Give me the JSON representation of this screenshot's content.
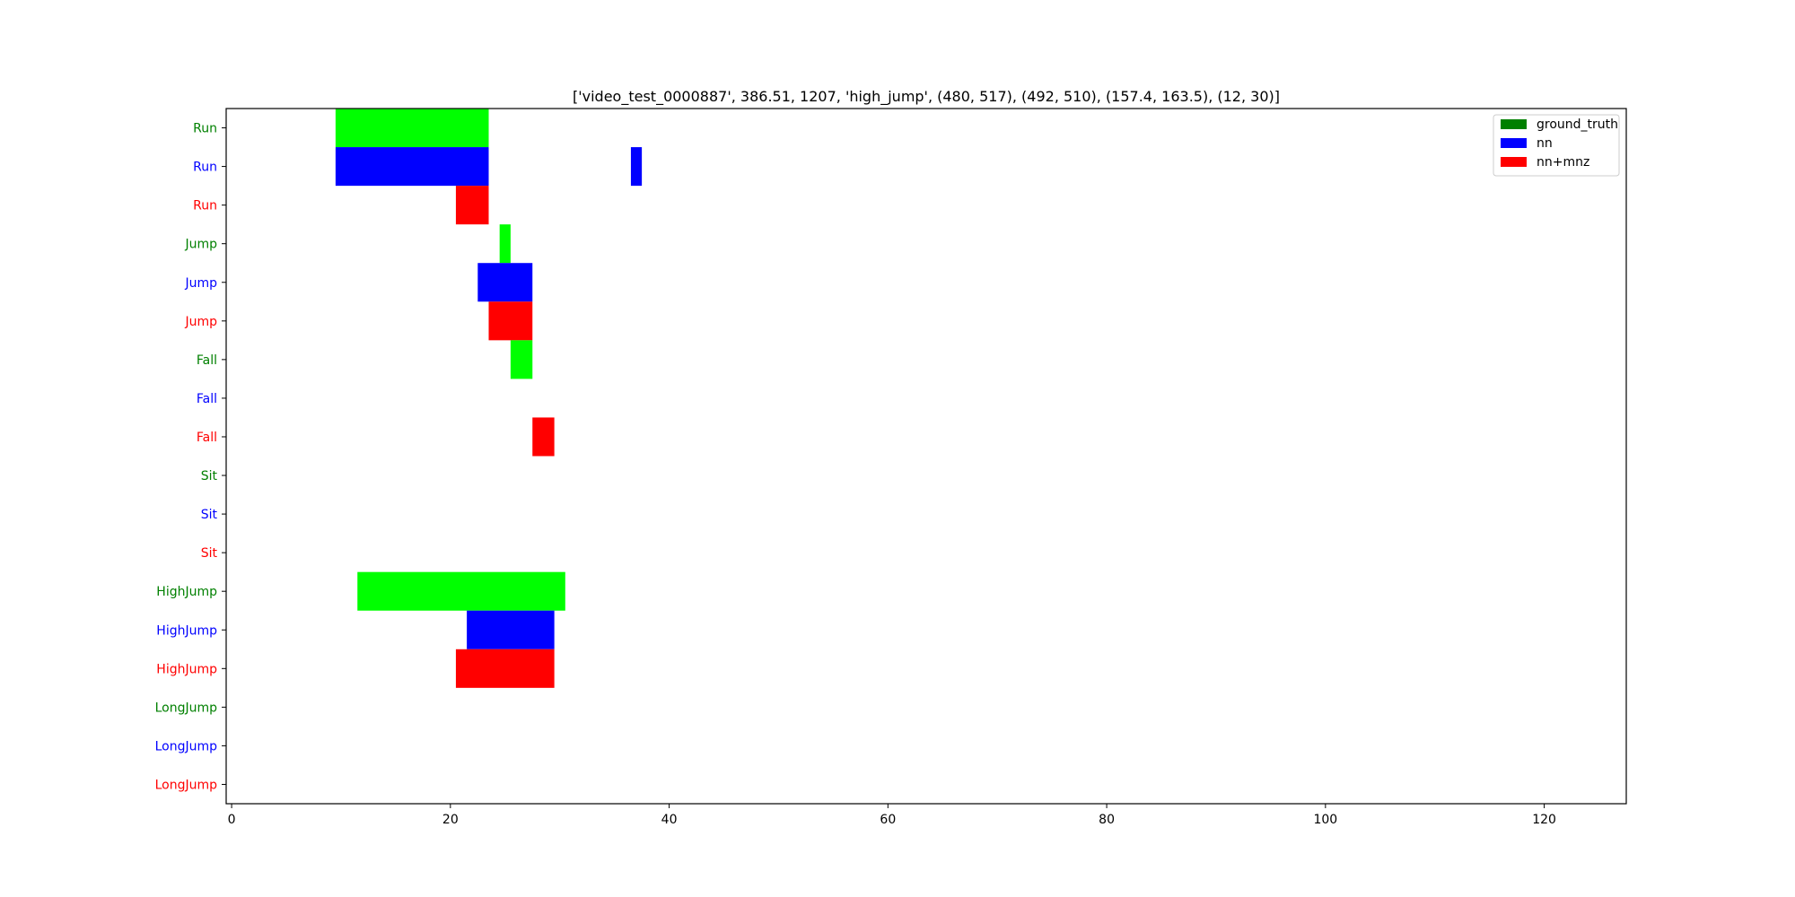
{
  "chart_data": {
    "type": "bar",
    "orientation": "horizontal",
    "title": "['video_test_0000887', 386.51, 1207, 'high_jump', (480, 517), (492, 510), (157.4, 163.5), (12, 30)]",
    "xlabel": "",
    "ylabel": "",
    "xlim": [
      -0.5,
      127.5
    ],
    "x_ticks": [
      0,
      20,
      40,
      60,
      80,
      100,
      120
    ],
    "grid": false,
    "legend_position": "top-right",
    "legend": [
      {
        "name": "ground_truth",
        "color": "#008000"
      },
      {
        "name": "nn",
        "color": "#0000ff"
      },
      {
        "name": "nn+mnz",
        "color": "#ff0000"
      }
    ],
    "rows": [
      {
        "label": "Run",
        "label_color": "#008000",
        "bar_color": "#00ff00",
        "segments": [
          [
            9.5,
            23.5
          ]
        ]
      },
      {
        "label": "Run",
        "label_color": "#0000ff",
        "bar_color": "#0000ff",
        "segments": [
          [
            9.5,
            23.5
          ],
          [
            36.5,
            37.5
          ]
        ]
      },
      {
        "label": "Run",
        "label_color": "#ff0000",
        "bar_color": "#ff0000",
        "segments": [
          [
            20.5,
            23.5
          ]
        ]
      },
      {
        "label": "Jump",
        "label_color": "#008000",
        "bar_color": "#00ff00",
        "segments": [
          [
            24.5,
            25.5
          ]
        ]
      },
      {
        "label": "Jump",
        "label_color": "#0000ff",
        "bar_color": "#0000ff",
        "segments": [
          [
            22.5,
            27.5
          ]
        ]
      },
      {
        "label": "Jump",
        "label_color": "#ff0000",
        "bar_color": "#ff0000",
        "segments": [
          [
            23.5,
            27.5
          ]
        ]
      },
      {
        "label": "Fall",
        "label_color": "#008000",
        "bar_color": "#00ff00",
        "segments": [
          [
            25.5,
            27.5
          ]
        ]
      },
      {
        "label": "Fall",
        "label_color": "#0000ff",
        "bar_color": "#0000ff",
        "segments": []
      },
      {
        "label": "Fall",
        "label_color": "#ff0000",
        "bar_color": "#ff0000",
        "segments": [
          [
            27.5,
            29.5
          ]
        ]
      },
      {
        "label": "Sit",
        "label_color": "#008000",
        "bar_color": "#00ff00",
        "segments": []
      },
      {
        "label": "Sit",
        "label_color": "#0000ff",
        "bar_color": "#0000ff",
        "segments": []
      },
      {
        "label": "Sit",
        "label_color": "#ff0000",
        "bar_color": "#ff0000",
        "segments": []
      },
      {
        "label": "HighJump",
        "label_color": "#008000",
        "bar_color": "#00ff00",
        "segments": [
          [
            11.5,
            30.5
          ]
        ]
      },
      {
        "label": "HighJump",
        "label_color": "#0000ff",
        "bar_color": "#0000ff",
        "segments": [
          [
            21.5,
            29.5
          ]
        ]
      },
      {
        "label": "HighJump",
        "label_color": "#ff0000",
        "bar_color": "#ff0000",
        "segments": [
          [
            20.5,
            29.5
          ]
        ]
      },
      {
        "label": "LongJump",
        "label_color": "#008000",
        "bar_color": "#00ff00",
        "segments": []
      },
      {
        "label": "LongJump",
        "label_color": "#0000ff",
        "bar_color": "#0000ff",
        "segments": []
      },
      {
        "label": "LongJump",
        "label_color": "#ff0000",
        "bar_color": "#ff0000",
        "segments": []
      }
    ]
  }
}
